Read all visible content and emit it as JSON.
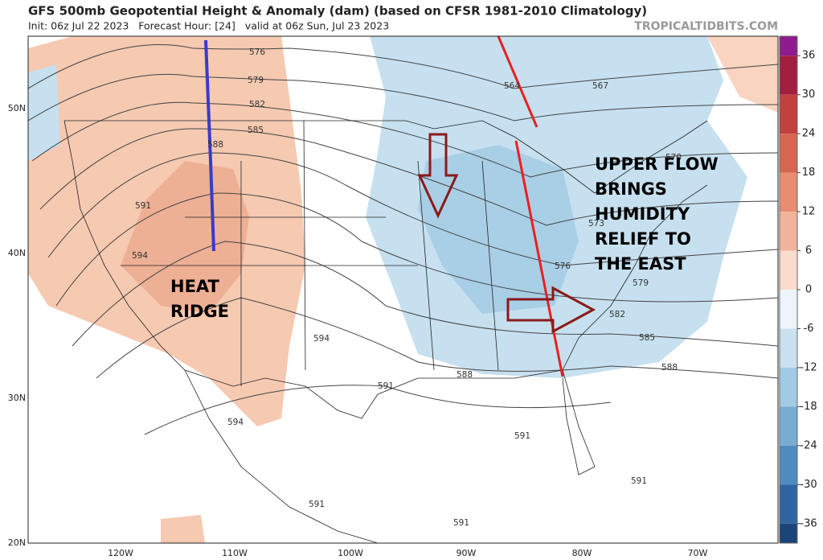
{
  "header": {
    "title": "GFS 500mb Geopotential Height & Anomaly (dam) (based on CFSR 1981-2010 Climatology)",
    "subtitle": "Init: 06z Jul 22 2023   Forecast Hour: [24]   valid at 06z Sun, Jul 23 2023",
    "source": "TROPICALTIDBITS.COM"
  },
  "map": {
    "lat_labels": [
      "50N",
      "40N",
      "30N",
      "20N"
    ],
    "lon_labels": [
      "120W",
      "110W",
      "100W",
      "90W",
      "80W",
      "70W"
    ],
    "contour_labels": [
      "576",
      "579",
      "582",
      "585",
      "588",
      "591",
      "594",
      "594",
      "591",
      "588",
      "591",
      "594",
      "591",
      "591",
      "591",
      "564",
      "567",
      "570",
      "573",
      "576",
      "579",
      "582",
      "585",
      "588"
    ],
    "annotations": [
      {
        "lines": [
          "HEAT",
          "RIDGE"
        ]
      },
      {
        "lines": [
          "UPPER FLOW",
          "BRINGS",
          "HUMIDITY",
          "RELIEF TO",
          "THE EAST"
        ]
      }
    ]
  },
  "colorbar": {
    "lim": [
      -39,
      39
    ],
    "ticks": [
      36,
      30,
      24,
      18,
      12,
      6,
      0,
      -6,
      -12,
      -18,
      -24,
      -30,
      -36
    ],
    "colors": [
      "#8e1c8e",
      "#a21f40",
      "#c2403e",
      "#d6664f",
      "#e68d72",
      "#f2b39b",
      "#f9dccb",
      "#eef5fa",
      "#c9e1ef",
      "#a3cae4",
      "#79acd3",
      "#4f8bbf",
      "#2f64a0",
      "#1b4478"
    ]
  }
}
